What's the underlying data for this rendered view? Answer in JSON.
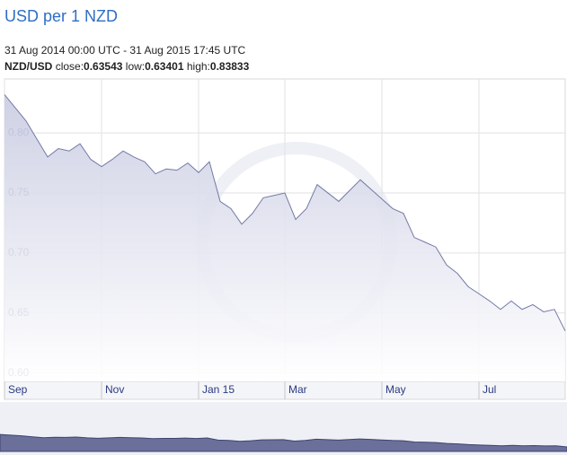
{
  "chart_data": {
    "type": "area",
    "title": "USD per 1 NZD",
    "subtitle": "31 Aug 2014 00:00 UTC - 31 Aug 2015 17:45 UTC",
    "pair": "NZD/USD",
    "stats": [
      {
        "label": "close:",
        "value": 0.63543
      },
      {
        "label": "low:",
        "value": 0.63401
      },
      {
        "label": "high:",
        "value": 0.83833
      }
    ],
    "categories": [
      "Sep",
      null,
      null,
      null,
      null,
      null,
      null,
      null,
      null,
      "Nov",
      null,
      null,
      null,
      null,
      null,
      null,
      null,
      null,
      "Jan 15",
      null,
      null,
      null,
      null,
      null,
      null,
      null,
      "Mar",
      null,
      null,
      null,
      null,
      null,
      null,
      null,
      null,
      "May",
      null,
      null,
      null,
      null,
      null,
      null,
      null,
      null,
      "Jul",
      null,
      null,
      null,
      null,
      null,
      null,
      null,
      null
    ],
    "values": [
      0.832,
      0.821,
      0.81,
      0.795,
      0.78,
      0.787,
      0.785,
      0.791,
      0.778,
      0.772,
      0.778,
      0.785,
      0.78,
      0.776,
      0.766,
      0.77,
      0.769,
      0.775,
      0.767,
      0.776,
      0.743,
      0.737,
      0.724,
      0.733,
      0.746,
      0.748,
      0.75,
      0.728,
      0.737,
      0.757,
      0.75,
      0.743,
      0.752,
      0.761,
      0.753,
      0.745,
      0.737,
      0.733,
      0.713,
      0.709,
      0.705,
      0.69,
      0.683,
      0.672,
      0.666,
      0.66,
      0.653,
      0.66,
      0.653,
      0.657,
      0.651,
      0.653,
      0.635
    ],
    "color": "#7479a6",
    "ylim": [
      0.593,
      0.845
    ],
    "yticks": [
      {
        "value": 0.8,
        "label": "0.80"
      },
      0.75,
      {
        "value": 0.7,
        "label": "0.70"
      },
      0.65,
      {
        "value": 0.6,
        "label": "0.60"
      }
    ],
    "grid": true
  }
}
